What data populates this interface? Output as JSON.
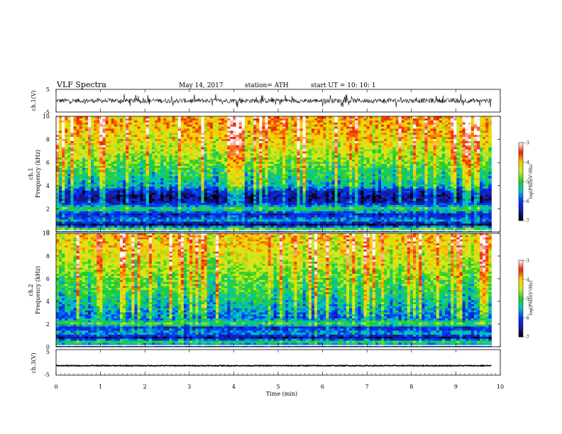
{
  "header": {
    "title": "VLF  Spectra",
    "date": "May 14,  2017",
    "station": "station= ATH",
    "start": "start  UT  =     10: 10: 1"
  },
  "chart_data": [
    {
      "type": "line",
      "id": "ch1",
      "ylabel": "ch.1(V)",
      "ylim": [
        -5,
        5
      ],
      "yticks": [
        "5",
        "-5"
      ],
      "xlim": [
        0,
        10
      ],
      "description_values": {
        "typical_amplitude_V": 1,
        "spike_amplitude_V": 3
      }
    },
    {
      "type": "heatmap",
      "id": "ch1_spectrogram",
      "ylabel": [
        "ch.1",
        "Frequency  (kHz)"
      ],
      "ylim": [
        0,
        10
      ],
      "yticks": [
        "0",
        "2",
        "4",
        "6",
        "8",
        "10"
      ],
      "xlim": [
        0,
        10
      ],
      "data_end_min": 9.8,
      "colorbar": {
        "label": "log(PSD)(V²/Hz)",
        "range": [
          -7,
          -3
        ],
        "ticks": [
          "-3",
          "-4",
          "-5",
          "-6",
          "-7"
        ]
      },
      "profile_log_psd": [
        {
          "f_khz": 0.0,
          "v": -6.2
        },
        {
          "f_khz": 0.3,
          "v": -4.8
        },
        {
          "f_khz": 0.6,
          "v": -6.8
        },
        {
          "f_khz": 1.0,
          "v": -5.6
        },
        {
          "f_khz": 1.5,
          "v": -6.4
        },
        {
          "f_khz": 2.0,
          "v": -5.0
        },
        {
          "f_khz": 2.5,
          "v": -6.3
        },
        {
          "f_khz": 3.0,
          "v": -6.5
        },
        {
          "f_khz": 3.5,
          "v": -6.2
        },
        {
          "f_khz": 4.0,
          "v": -5.4
        },
        {
          "f_khz": 5.0,
          "v": -5.1
        },
        {
          "f_khz": 6.0,
          "v": -4.7
        },
        {
          "f_khz": 7.0,
          "v": -4.4
        },
        {
          "f_khz": 8.0,
          "v": -4.1
        },
        {
          "f_khz": 9.0,
          "v": -3.9
        },
        {
          "f_khz": 10.0,
          "v": -3.8
        }
      ]
    },
    {
      "type": "heatmap",
      "id": "ch2_spectrogram",
      "ylabel": [
        "ch.2",
        "Frequency  (kHz)"
      ],
      "ylim": [
        0,
        10
      ],
      "yticks": [
        "0",
        "2",
        "4",
        "6",
        "8",
        "10"
      ],
      "xlim": [
        0,
        10
      ],
      "data_end_min": 9.8,
      "colorbar": {
        "label": "log(PSD)(V²/Hz)",
        "range": [
          -7,
          -3
        ],
        "ticks": [
          "-3",
          "-4",
          "-5",
          "-6",
          "-7"
        ]
      },
      "profile_log_psd": [
        {
          "f_khz": 0.0,
          "v": -6.4
        },
        {
          "f_khz": 0.4,
          "v": -5.0
        },
        {
          "f_khz": 0.8,
          "v": -6.6
        },
        {
          "f_khz": 1.2,
          "v": -5.6
        },
        {
          "f_khz": 1.7,
          "v": -6.2
        },
        {
          "f_khz": 2.0,
          "v": -4.9
        },
        {
          "f_khz": 2.5,
          "v": -5.8
        },
        {
          "f_khz": 3.0,
          "v": -5.6
        },
        {
          "f_khz": 4.0,
          "v": -5.3
        },
        {
          "f_khz": 5.0,
          "v": -5.0
        },
        {
          "f_khz": 6.0,
          "v": -4.8
        },
        {
          "f_khz": 7.0,
          "v": -4.5
        },
        {
          "f_khz": 8.0,
          "v": -4.3
        },
        {
          "f_khz": 9.0,
          "v": -4.1
        },
        {
          "f_khz": 10.0,
          "v": -4.0
        }
      ]
    },
    {
      "type": "line",
      "id": "ch3",
      "ylabel": "ch.3(V)",
      "ylim": [
        -5,
        5
      ],
      "yticks": [
        "5",
        "-5"
      ],
      "xlim": [
        0,
        10
      ],
      "description_values": {
        "level_V": -1.3,
        "typical_amplitude_V": 0.15
      }
    }
  ],
  "x_axis": {
    "label": "Time  (min)",
    "ticks": [
      "0",
      "1",
      "2",
      "3",
      "4",
      "5",
      "6",
      "7",
      "8",
      "9",
      "10"
    ]
  },
  "colors": {
    "colormap": [
      "#000000",
      "#1a1aa0",
      "#0033ff",
      "#00c8c8",
      "#22cc22",
      "#ccee22",
      "#ffcc00",
      "#ee2200",
      "#ffffff"
    ],
    "trace": "#000000"
  }
}
